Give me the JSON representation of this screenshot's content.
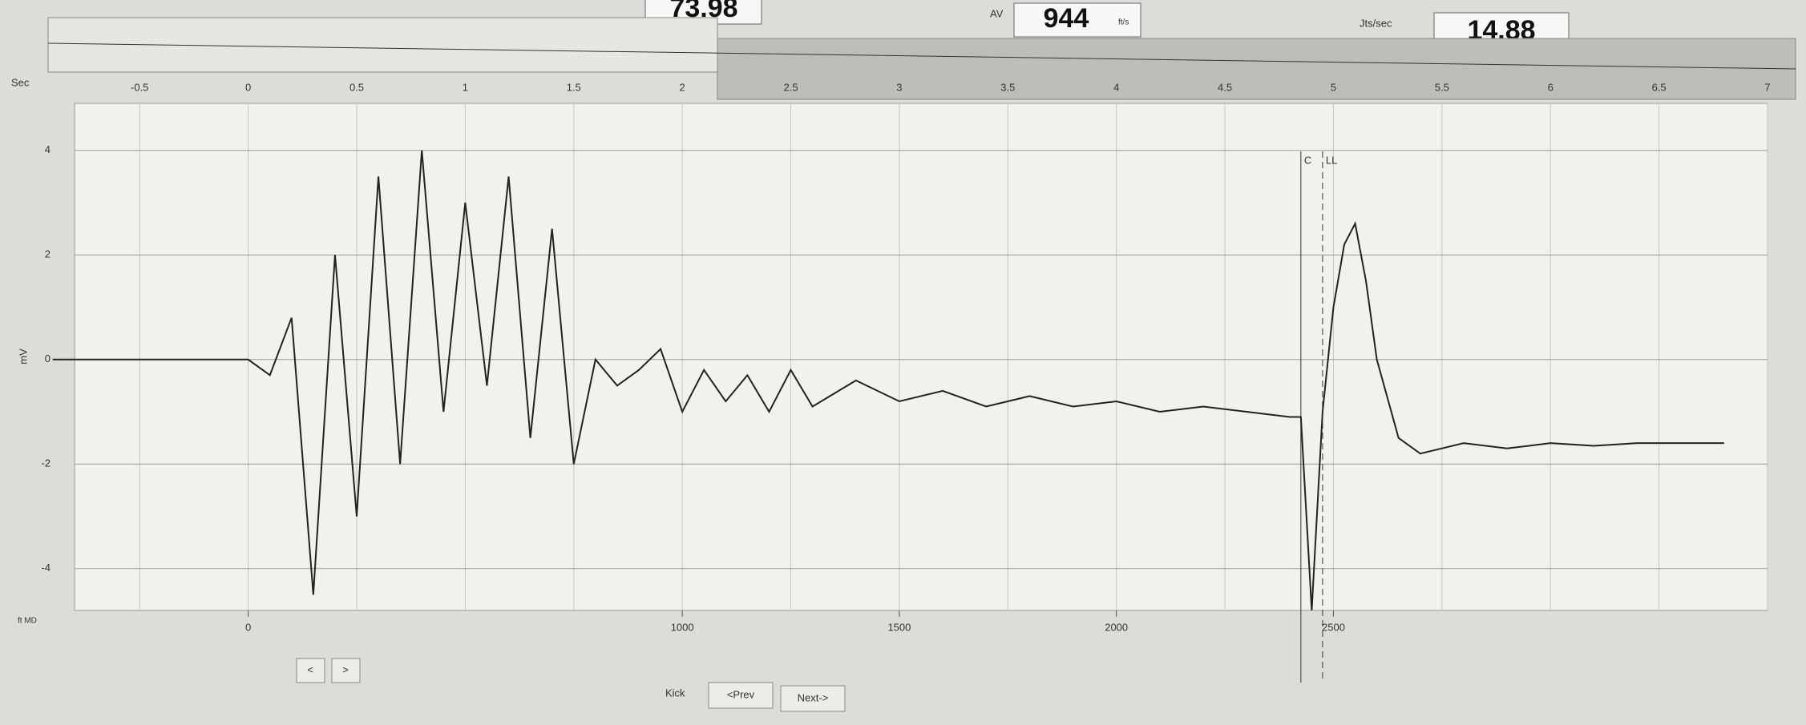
{
  "header": {
    "speed_value": "73.98",
    "av_label": "AV",
    "av_value": "944",
    "av_unit": "ft/s",
    "rate_label": "Jts/sec",
    "rate_value": "14.88"
  },
  "chart_data": {
    "type": "line",
    "x_label": "Sec",
    "y_label": "mV",
    "x2_label": "ft MD",
    "x": [
      -0.9,
      -0.5,
      0,
      0.1,
      0.2,
      0.3,
      0.4,
      0.5,
      0.6,
      0.7,
      0.8,
      0.9,
      1.0,
      1.1,
      1.2,
      1.3,
      1.4,
      1.5,
      1.6,
      1.7,
      1.8,
      1.9,
      2.0,
      2.1,
      2.2,
      2.3,
      2.4,
      2.5,
      2.6,
      2.8,
      3.0,
      3.2,
      3.4,
      3.6,
      3.8,
      4.0,
      4.2,
      4.4,
      4.6,
      4.8,
      4.85,
      4.9,
      4.95,
      5.0,
      5.05,
      5.1,
      5.15,
      5.2,
      5.3,
      5.4,
      5.5,
      5.6,
      5.8,
      6.0,
      6.2,
      6.4,
      6.6,
      6.8
    ],
    "series": [
      {
        "color": "#222222",
        "values": [
          0,
          0,
          0,
          -0.3,
          0.8,
          -4.5,
          2,
          -3,
          3.5,
          -2,
          4,
          -1,
          3,
          -0.5,
          3.5,
          -1.5,
          2.5,
          -2,
          0,
          -0.5,
          -0.2,
          0.2,
          -1,
          -0.2,
          -0.8,
          -0.3,
          -1,
          -0.2,
          -0.9,
          -0.4,
          -0.8,
          -0.6,
          -0.9,
          -0.7,
          -0.9,
          -0.8,
          -1,
          -0.9,
          -1,
          -1.1,
          -1.1,
          -4.8,
          -1,
          1,
          2.2,
          2.6,
          1.5,
          0,
          -1.5,
          -1.8,
          -1.7,
          -1.6,
          -1.7,
          -1.6,
          -1.65,
          -1.6,
          -1.6,
          -1.6
        ]
      }
    ],
    "xlim": [
      -0.8,
      7
    ],
    "xticks": [
      -0.5,
      0,
      0.5,
      1,
      1.5,
      2,
      2.5,
      3,
      3.5,
      4,
      4.5,
      5,
      5.5,
      6,
      6.5,
      7
    ],
    "ylim": [
      -4.8,
      4.9
    ],
    "yticks": [
      4,
      2,
      0,
      -2,
      -4
    ],
    "x2lim": [
      -400,
      3500
    ],
    "x2ticks": [
      0,
      1000,
      1500,
      2000,
      2500
    ],
    "grid": true,
    "markers": [
      {
        "label": "C",
        "x": 4.85
      },
      {
        "label": "LL",
        "x": 4.95
      }
    ]
  },
  "buttons": {
    "left": "<",
    "right": ">",
    "kick": "Kick",
    "prev": "<Prev",
    "next": "Next->"
  }
}
